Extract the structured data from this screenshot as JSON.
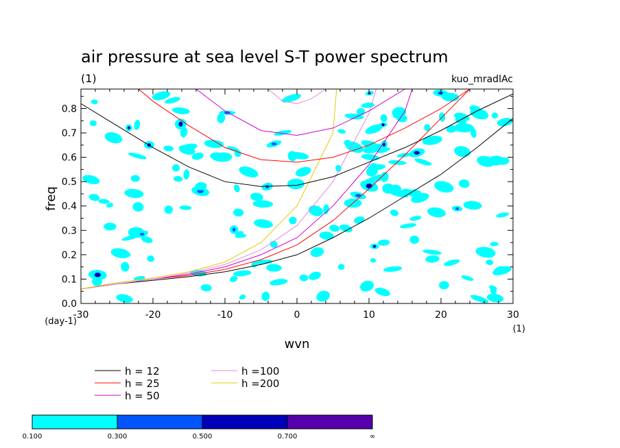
{
  "chart_data": {
    "type": "line",
    "title": "air pressure at sea level S-T power spectrum",
    "subtitle_left": "(1)",
    "subtitle_right": "kuo_mradlAc",
    "xlabel": "wvn",
    "ylabel": "freq",
    "x_unit": "(1)",
    "y_unit": "(day-1)",
    "xlim": [
      -30,
      30
    ],
    "ylim": [
      0,
      0.88
    ],
    "x_ticks": [
      -30,
      -20,
      -10,
      0,
      10,
      20,
      30
    ],
    "x_tick_labels": [
      "-30",
      "-20",
      "-10",
      "0",
      "10",
      "20",
      "30"
    ],
    "y_ticks": [
      0,
      0.1,
      0.2,
      0.3,
      0.4,
      0.5,
      0.6,
      0.7,
      0.8
    ],
    "y_tick_labels": [
      "0.0",
      "0.1",
      "0.2",
      "0.3",
      "0.4",
      "0.5",
      "0.6",
      "0.7",
      "0.8"
    ],
    "series": [
      {
        "name": "h = 12",
        "color": "#000000",
        "kind": "kelvin",
        "x": [
          -30,
          -25,
          -20,
          -15,
          -10,
          -5,
          0,
          5,
          10,
          15,
          20,
          25,
          30
        ],
        "y": [
          0.06,
          0.08,
          0.095,
          0.11,
          0.13,
          0.16,
          0.2,
          0.27,
          0.35,
          0.44,
          0.53,
          0.64,
          0.76
        ]
      },
      {
        "name": "h = 25",
        "color": "#ff0000",
        "kind": "kelvin",
        "x": [
          -30,
          -25,
          -20,
          -15,
          -10,
          -5,
          0,
          5,
          10,
          15,
          20,
          24
        ],
        "y": [
          0.06,
          0.08,
          0.1,
          0.115,
          0.14,
          0.18,
          0.24,
          0.34,
          0.47,
          0.61,
          0.76,
          0.88
        ]
      },
      {
        "name": "h = 50",
        "color": "#cc00cc",
        "kind": "kelvin",
        "x": [
          -30,
          -25,
          -20,
          -15,
          -10,
          -5,
          0,
          5,
          10,
          15,
          16
        ],
        "y": [
          0.06,
          0.08,
          0.1,
          0.12,
          0.15,
          0.2,
          0.27,
          0.4,
          0.57,
          0.79,
          0.88
        ]
      },
      {
        "name": "h =100",
        "color": "#e08ae0",
        "kind": "kelvin",
        "x": [
          -30,
          -25,
          -20,
          -15,
          -10,
          -5,
          0,
          5,
          10,
          11
        ],
        "y": [
          0.06,
          0.08,
          0.1,
          0.125,
          0.16,
          0.22,
          0.32,
          0.5,
          0.78,
          0.88
        ]
      },
      {
        "name": "h =200",
        "color": "#e8c800",
        "kind": "kelvin",
        "x": [
          -30,
          -25,
          -20,
          -15,
          -10,
          -5,
          0,
          5,
          5.5
        ],
        "y": [
          0.06,
          0.085,
          0.105,
          0.13,
          0.17,
          0.25,
          0.4,
          0.7,
          0.88
        ]
      },
      {
        "name": "h = 12",
        "color": "#000000",
        "kind": "gravity",
        "x": [
          -30,
          -25,
          -20,
          -15,
          -10,
          -5,
          0,
          5,
          10,
          15,
          20,
          25,
          30
        ],
        "y": [
          0.82,
          0.73,
          0.64,
          0.56,
          0.5,
          0.48,
          0.485,
          0.52,
          0.58,
          0.64,
          0.71,
          0.79,
          0.86
        ]
      },
      {
        "name": "h = 25",
        "color": "#ff0000",
        "kind": "gravity",
        "x": [
          -22,
          -20,
          -15,
          -10,
          -5,
          0,
          5,
          10,
          15,
          20,
          24
        ],
        "y": [
          0.88,
          0.83,
          0.73,
          0.64,
          0.59,
          0.58,
          0.6,
          0.65,
          0.72,
          0.8,
          0.88
        ]
      },
      {
        "name": "h = 50",
        "color": "#cc00cc",
        "kind": "gravity",
        "x": [
          -14,
          -10,
          -5,
          0,
          5,
          10,
          15
        ],
        "y": [
          0.88,
          0.79,
          0.71,
          0.69,
          0.72,
          0.79,
          0.88
        ]
      },
      {
        "name": "h =100",
        "color": "#e08ae0",
        "kind": "gravity",
        "x": [
          -4,
          -2,
          0,
          2,
          4
        ],
        "y": [
          0.88,
          0.83,
          0.82,
          0.84,
          0.88
        ]
      }
    ],
    "contour_levels": [
      "0.100",
      "0.300",
      "0.500",
      "0.700",
      "∞"
    ],
    "contour_colors": [
      "#00ffff",
      "#0055ff",
      "#0000bb",
      "#5500aa"
    ],
    "legend_placement": "bottom-left",
    "legend": [
      {
        "label": "h = 12",
        "color": "#000000"
      },
      {
        "label": "h = 25",
        "color": "#ff0000"
      },
      {
        "label": "h = 50",
        "color": "#cc00cc"
      },
      {
        "label": "h =100",
        "color": "#e08ae0"
      },
      {
        "label": "h =200",
        "color": "#e8c800"
      }
    ],
    "grid": false
  }
}
